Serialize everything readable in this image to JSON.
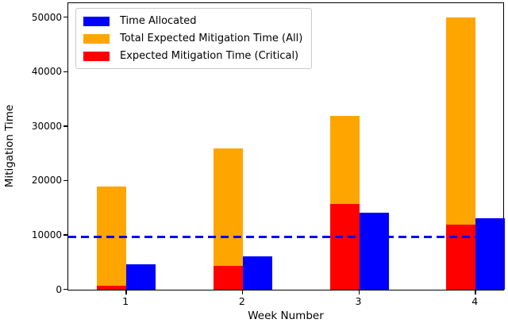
{
  "chart_data": {
    "type": "bar",
    "title": "",
    "xlabel": "Week Number",
    "ylabel": "Mitigation Time",
    "categories": [
      "1",
      "2",
      "3",
      "4"
    ],
    "series": [
      {
        "name": "Time Allocated",
        "color": "#0000ff",
        "values": [
          4700,
          6200,
          14200,
          13200
        ]
      },
      {
        "name": "Total Expected Mitigation Time (All)",
        "color": "#ffa500",
        "values": [
          19000,
          26000,
          32000,
          50000
        ]
      },
      {
        "name": "Expected Mitigation Time (Critical)",
        "color": "#ff0000",
        "values": [
          700,
          4400,
          15700,
          12000
        ]
      }
    ],
    "reference_line": {
      "value": 9500,
      "color": "#0000ff",
      "style": "dashed"
    },
    "y_ticks": [
      0,
      10000,
      20000,
      30000,
      40000,
      50000
    ],
    "ylim": [
      0,
      52500
    ],
    "legend_position": "upper-left",
    "grid": false,
    "bar_layout": "orange-and-red-overlaid-left-of-tick, blue-right-of-tick"
  }
}
